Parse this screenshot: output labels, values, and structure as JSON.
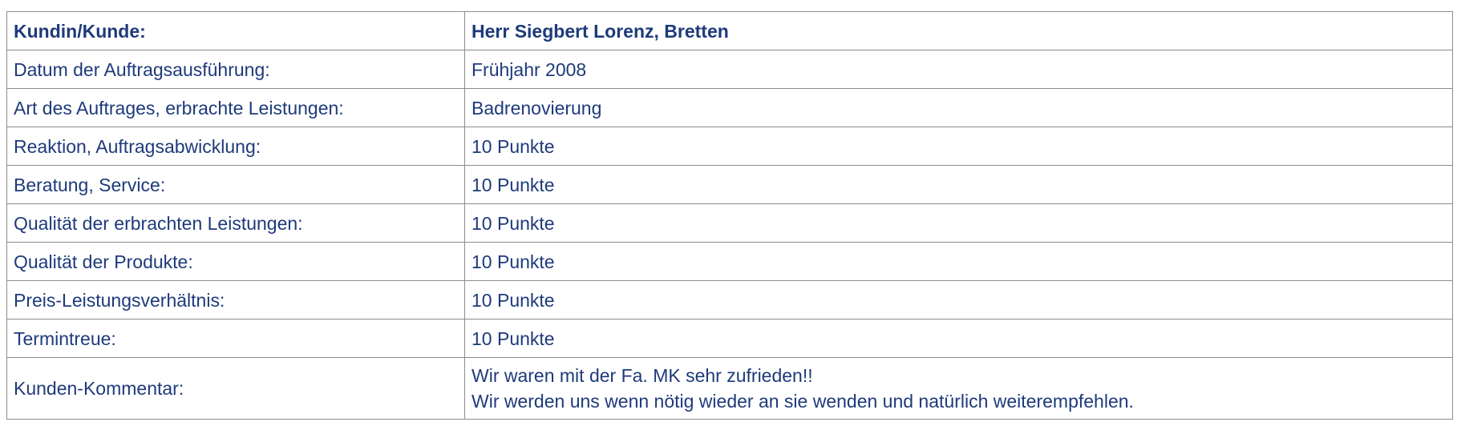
{
  "table": {
    "header": {
      "label": "Kundin/Kunde:",
      "value": "Herr Siegbert Lorenz, Bretten"
    },
    "rows": [
      {
        "label": "Datum der Auftragsausführung:",
        "value": "Frühjahr 2008"
      },
      {
        "label": "Art des Auftrages, erbrachte Leistungen:",
        "value": "Badrenovierung"
      },
      {
        "label": "Reaktion, Auftragsabwicklung:",
        "value": "10 Punkte"
      },
      {
        "label": "Beratung, Service:",
        "value": "10 Punkte"
      },
      {
        "label": "Qualität der erbrachten Leistungen:",
        "value": "10 Punkte"
      },
      {
        "label": "Qualität der Produkte:",
        "value": "10 Punkte"
      },
      {
        "label": "Preis-Leistungsverhältnis:",
        "value": "10 Punkte"
      },
      {
        "label": "Termintreue:",
        "value": "10 Punkte"
      }
    ],
    "comment": {
      "label": "Kunden-Kommentar:",
      "lines": [
        "Wir waren mit der Fa. MK sehr zufrieden!!",
        "Wir werden uns wenn nötig wieder an sie wenden und natürlich weiterempfehlen."
      ]
    }
  },
  "colors": {
    "text": "#1e3a7b",
    "border": "#8c8c8c",
    "background": "#ffffff"
  }
}
